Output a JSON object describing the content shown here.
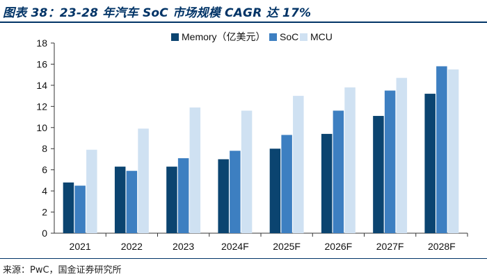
{
  "header": {
    "title": "图表 38：23-28 年汽车 SoC 市场规模 CAGR 达 17%"
  },
  "footer": {
    "source": "来源：PwC，国金证券研究所"
  },
  "chart_data": {
    "type": "bar",
    "title": "",
    "xlabel": "",
    "ylabel": "",
    "ylim": [
      0,
      18
    ],
    "yticks": [
      "0",
      "2",
      "4",
      "6",
      "8",
      "10",
      "12",
      "14",
      "16",
      "18"
    ],
    "grid": false,
    "legend": "top-right",
    "categories": [
      "2021",
      "2022",
      "2023",
      "2024F",
      "2025F",
      "2026F",
      "2027F",
      "2028F"
    ],
    "series": [
      {
        "name": "Memory（亿美元）",
        "color": "#0b4470",
        "values": [
          4.8,
          6.3,
          6.3,
          7.0,
          8.0,
          9.4,
          11.1,
          13.2
        ]
      },
      {
        "name": "SoC",
        "color": "#3d7fc1",
        "values": [
          4.5,
          5.9,
          7.1,
          7.8,
          9.3,
          11.6,
          13.5,
          15.8
        ]
      },
      {
        "name": "MCU",
        "color": "#cfe1f2",
        "values": [
          7.9,
          9.9,
          11.9,
          11.6,
          13.0,
          13.8,
          14.7,
          15.5
        ]
      }
    ]
  }
}
